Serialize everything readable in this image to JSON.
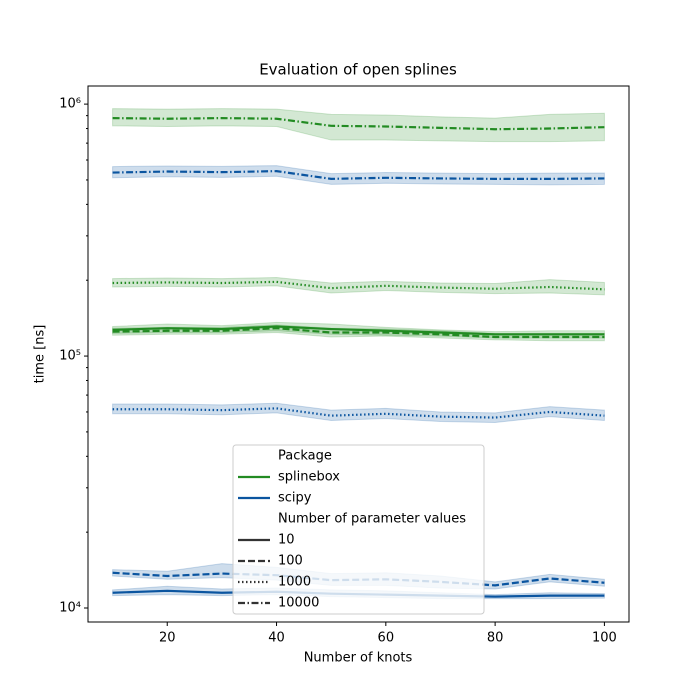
{
  "chart_data": {
    "type": "line",
    "title": "Evaluation of open splines",
    "xlabel": "Number of knots",
    "ylabel": "time [ns]",
    "x": [
      10,
      20,
      30,
      40,
      50,
      60,
      70,
      80,
      90,
      100
    ],
    "xlim": [
      5.5,
      104.5
    ],
    "xticks": [
      20,
      40,
      60,
      80,
      100
    ],
    "ylog": true,
    "ylim": [
      8800,
      1180000
    ],
    "yticks": [
      {
        "value": 10000,
        "label": "10⁴"
      },
      {
        "value": 100000,
        "label": "10⁵"
      },
      {
        "value": 1000000,
        "label": "10⁶"
      }
    ],
    "yminorticks": [
      20000,
      30000,
      40000,
      50000,
      60000,
      70000,
      80000,
      90000,
      200000,
      300000,
      400000,
      500000,
      600000,
      700000,
      800000,
      900000
    ],
    "legend": {
      "groups": [
        {
          "title": "Package",
          "entries": [
            {
              "name": "splinebox",
              "color": "#228b22"
            },
            {
              "name": "scipy",
              "color": "#0b55a0"
            }
          ]
        },
        {
          "title": "Number of parameter values",
          "entries": [
            {
              "name": "10",
              "dash": "solid"
            },
            {
              "name": "100",
              "dash": "dashed"
            },
            {
              "name": "1000",
              "dash": "dotted"
            },
            {
              "name": "10000",
              "dash": "dashdot"
            }
          ]
        }
      ]
    },
    "series": [
      {
        "color": "#228b22",
        "dash": "dashdot",
        "values": [
          880000,
          875000,
          880000,
          875000,
          820000,
          815000,
          805000,
          795000,
          800000,
          810000
        ],
        "upper": [
          960000,
          955000,
          960000,
          955000,
          910000,
          905000,
          890000,
          880000,
          910000,
          920000
        ],
        "lower": [
          820000,
          815000,
          820000,
          815000,
          720000,
          720000,
          715000,
          710000,
          710000,
          715000
        ]
      },
      {
        "color": "#0b55a0",
        "dash": "dashdot",
        "values": [
          535000,
          540000,
          537000,
          542000,
          505000,
          510000,
          507000,
          505000,
          505000,
          507000
        ],
        "upper": [
          565000,
          568000,
          566000,
          570000,
          530000,
          535000,
          532000,
          530000,
          532000,
          533000
        ],
        "lower": [
          510000,
          515000,
          512000,
          517000,
          480000,
          485000,
          482000,
          480000,
          478000,
          480000
        ]
      },
      {
        "color": "#228b22",
        "dash": "dotted",
        "values": [
          195000,
          196000,
          195000,
          197000,
          186000,
          190000,
          187000,
          185000,
          188000,
          184000
        ],
        "upper": [
          203000,
          204000,
          203000,
          205000,
          195000,
          198000,
          195000,
          194000,
          201000,
          196000
        ],
        "lower": [
          188000,
          189000,
          188000,
          190000,
          178000,
          182000,
          179000,
          177000,
          178000,
          175000
        ]
      },
      {
        "color": "#228b22",
        "dash": "solid",
        "values": [
          127000,
          129000,
          128000,
          131000,
          128000,
          126000,
          124000,
          122000,
          122000,
          122000
        ],
        "upper": [
          131000,
          134000,
          132000,
          136000,
          134000,
          130000,
          127000,
          125000,
          126000,
          126000
        ],
        "lower": [
          123000,
          124000,
          124000,
          126000,
          122000,
          121000,
          120000,
          118000,
          118000,
          118000
        ]
      },
      {
        "color": "#228b22",
        "dash": "dashed",
        "values": [
          125000,
          126000,
          126000,
          129000,
          124000,
          124000,
          122000,
          119000,
          119000,
          119000
        ],
        "upper": [
          129000,
          130000,
          130000,
          133000,
          129000,
          128000,
          126000,
          123000,
          123000,
          123000
        ],
        "lower": [
          121000,
          122000,
          122000,
          124000,
          119000,
          120000,
          118000,
          116000,
          115000,
          115000
        ]
      },
      {
        "color": "#0b55a0",
        "dash": "dotted",
        "values": [
          61500,
          61500,
          61000,
          62000,
          58000,
          59000,
          57500,
          57000,
          60000,
          58000
        ],
        "upper": [
          64500,
          64500,
          64000,
          65000,
          61000,
          62000,
          60000,
          59500,
          63000,
          61000
        ],
        "lower": [
          59000,
          59000,
          58500,
          59500,
          55500,
          56500,
          55000,
          54500,
          57500,
          55500
        ]
      },
      {
        "color": "#0b55a0",
        "dash": "dashed",
        "values": [
          13800,
          13400,
          13700,
          13500,
          12900,
          13000,
          12700,
          12300,
          13100,
          12600
        ],
        "upper": [
          14200,
          14000,
          15000,
          14500,
          13700,
          13800,
          13400,
          12700,
          13600,
          13000
        ],
        "lower": [
          13400,
          13000,
          13200,
          12900,
          12300,
          12300,
          12000,
          11900,
          12700,
          12200
        ]
      },
      {
        "color": "#0b55a0",
        "dash": "solid",
        "values": [
          11500,
          11700,
          11500,
          11600,
          11400,
          11300,
          11200,
          11100,
          11200,
          11200
        ],
        "upper": [
          11800,
          12200,
          11900,
          12000,
          11800,
          11700,
          11500,
          11300,
          11500,
          11400
        ],
        "lower": [
          11200,
          11300,
          11200,
          11300,
          11100,
          11000,
          10900,
          10900,
          10900,
          10950
        ]
      }
    ]
  }
}
